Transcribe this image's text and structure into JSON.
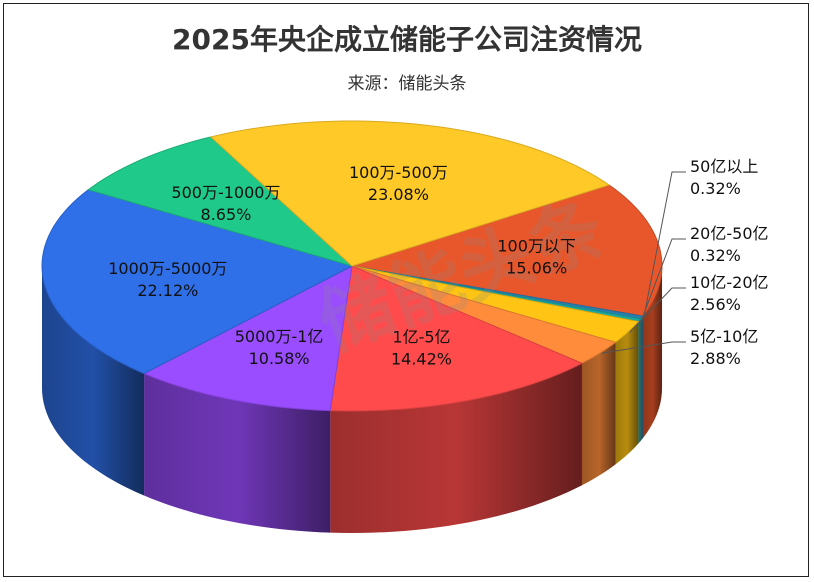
{
  "title": "2025年央企成立储能子公司注资情况",
  "subtitle": "来源：储能头条",
  "watermark": "储能头条",
  "chart_data": {
    "type": "pie",
    "title": "2025年央企成立储能子公司注资情况",
    "subtitle": "来源：储能头条",
    "slices": [
      {
        "label": "100万以下",
        "value": 15.06,
        "percent": "15.06%",
        "color": "#e8572b"
      },
      {
        "label": "50亿以上",
        "value": 0.32,
        "percent": "0.32%",
        "color": "#2b7fb0"
      },
      {
        "label": "20亿-50亿",
        "value": 0.32,
        "percent": "0.32%",
        "color": "#18a8a0"
      },
      {
        "label": "10亿-20亿",
        "value": 2.56,
        "percent": "2.56%",
        "color": "#ffc414"
      },
      {
        "label": "5亿-10亿",
        "value": 2.88,
        "percent": "2.88%",
        "color": "#ff8c3a"
      },
      {
        "label": "1亿-5亿",
        "value": 14.42,
        "percent": "14.42%",
        "color": "#ff4b4b"
      },
      {
        "label": "5000万-1亿",
        "value": 10.58,
        "percent": "10.58%",
        "color": "#9a4dff"
      },
      {
        "label": "1000万-5000万",
        "value": 22.12,
        "percent": "22.12%",
        "color": "#2f6fe8"
      },
      {
        "label": "500万-1000万",
        "value": 8.65,
        "percent": "8.65%",
        "color": "#1fc98a"
      },
      {
        "label": "100万-500万",
        "value": 23.08,
        "percent": "23.08%",
        "color": "#ffc928"
      }
    ]
  }
}
